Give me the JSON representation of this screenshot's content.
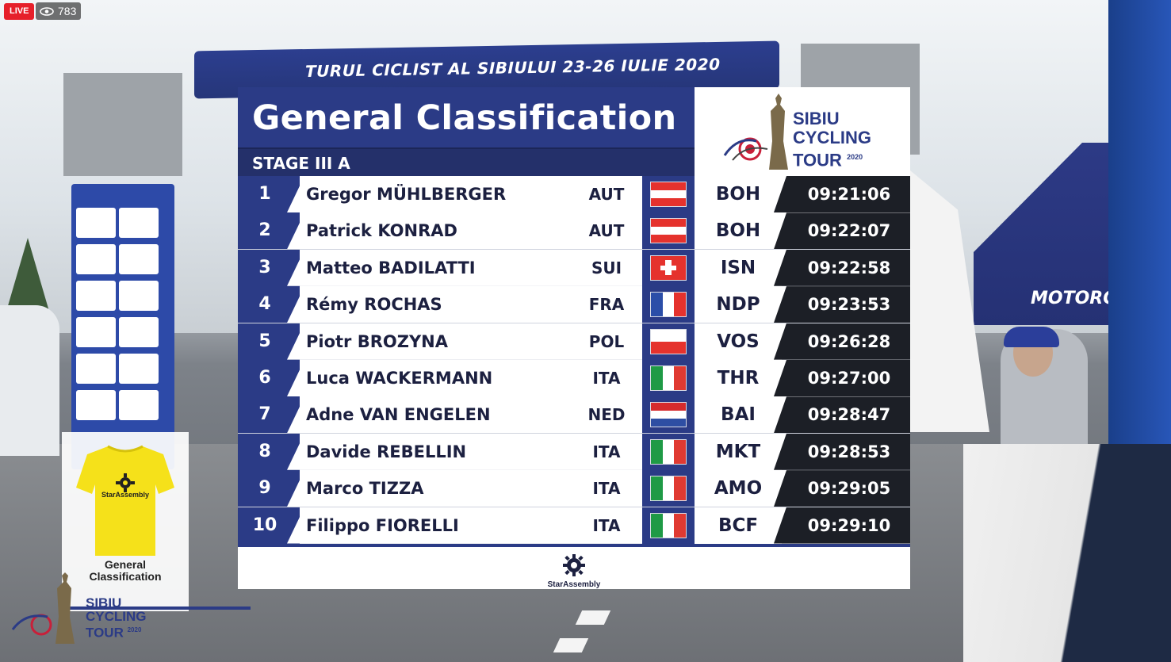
{
  "stream": {
    "live_label": "LIVE",
    "viewer_count": "783"
  },
  "background": {
    "arch_banner_text": "TURUL CICLIST AL SIBIULUI 23-26 IULIE 2020",
    "tent_label": "MOTOROILS"
  },
  "panel": {
    "title": "General Classification",
    "stage": "STAGE III A",
    "logo": {
      "line1": "SIBIU",
      "line2": "CYCLING",
      "line3": "TOUR",
      "year": "2020"
    },
    "footer_brand": "StarAssembly"
  },
  "colors": {
    "panel_blue": "#2b3b86",
    "stage_blue": "#24306a",
    "time_bg": "#1c1f26",
    "jersey_yellow": "#f5e11a"
  },
  "standings": [
    {
      "pos": "1",
      "name": "Gregor MÜHLBERGER",
      "nat": "AUT",
      "flag": "austria",
      "team": "BOH",
      "time": "09:21:06"
    },
    {
      "pos": "2",
      "name": "Patrick KONRAD",
      "nat": "AUT",
      "flag": "austria",
      "team": "BOH",
      "time": "09:22:07"
    },
    {
      "pos": "3",
      "name": "Matteo BADILATTI",
      "nat": "SUI",
      "flag": "switzerland",
      "team": "ISN",
      "time": "09:22:58"
    },
    {
      "pos": "4",
      "name": "Rémy ROCHAS",
      "nat": "FRA",
      "flag": "france",
      "team": "NDP",
      "time": "09:23:53"
    },
    {
      "pos": "5",
      "name": "Piotr BROZYNA",
      "nat": "POL",
      "flag": "poland",
      "team": "VOS",
      "time": "09:26:28"
    },
    {
      "pos": "6",
      "name": "Luca WACKERMANN",
      "nat": "ITA",
      "flag": "italy",
      "team": "THR",
      "time": "09:27:00"
    },
    {
      "pos": "7",
      "name": "Adne VAN ENGELEN",
      "nat": "NED",
      "flag": "netherlands",
      "team": "BAI",
      "time": "09:28:47"
    },
    {
      "pos": "8",
      "name": "Davide REBELLIN",
      "nat": "ITA",
      "flag": "italy",
      "team": "MKT",
      "time": "09:28:53"
    },
    {
      "pos": "9",
      "name": "Marco TIZZA",
      "nat": "ITA",
      "flag": "italy",
      "team": "AMO",
      "time": "09:29:05"
    },
    {
      "pos": "10",
      "name": "Filippo FIORELLI",
      "nat": "ITA",
      "flag": "italy",
      "team": "BCF",
      "time": "09:29:10"
    }
  ],
  "jersey_card": {
    "brand": "StarAssembly",
    "caption_line1": "General",
    "caption_line2": "Classification"
  },
  "corner_logo": {
    "line1": "SIBIU",
    "line2": "CYCLING",
    "line3": "TOUR",
    "year": "2020"
  }
}
